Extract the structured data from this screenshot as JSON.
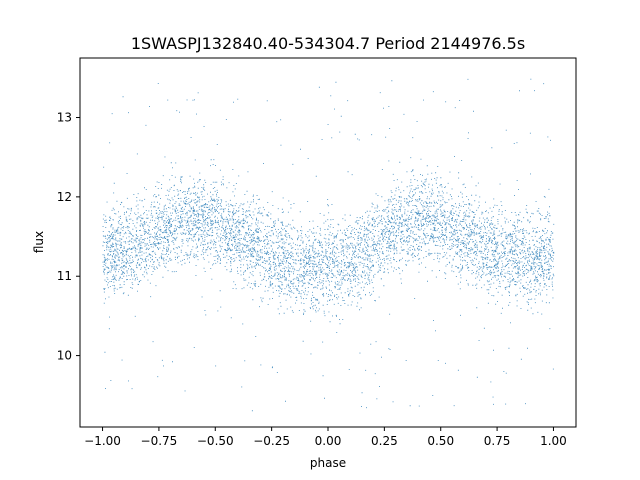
{
  "chart_data": {
    "type": "scatter",
    "title": "1SWASPJ132840.40-534304.7 Period 2144976.5s",
    "xlabel": "phase",
    "ylabel": "flux",
    "xlim": [
      -1.1,
      1.1
    ],
    "ylim": [
      9.1,
      13.75
    ],
    "xticks": [
      -1.0,
      -0.75,
      -0.5,
      -0.25,
      0.0,
      0.25,
      0.5,
      0.75,
      1.0
    ],
    "xtick_labels": [
      "−1.00",
      "−0.75",
      "−0.50",
      "−0.25",
      "0.00",
      "0.25",
      "0.50",
      "0.75",
      "1.00"
    ],
    "yticks": [
      10,
      11,
      12,
      13
    ],
    "ytick_labels": [
      "10",
      "11",
      "12",
      "13"
    ],
    "grid": false,
    "point_color": "#1f77b4",
    "series": [
      {
        "x_range": [
          -1.0,
          1.0
        ],
        "mean_profile": {
          "phase": [
            -1.0,
            -0.9,
            -0.8,
            -0.7,
            -0.6,
            -0.5,
            -0.4,
            -0.3,
            -0.2,
            -0.1,
            0.0,
            0.1,
            0.2,
            0.3,
            0.4,
            0.5,
            0.6,
            0.7,
            0.8,
            0.9,
            1.0
          ],
          "flux": [
            11.3,
            11.35,
            11.45,
            11.65,
            11.75,
            11.7,
            11.5,
            11.35,
            11.2,
            11.1,
            11.15,
            11.2,
            11.4,
            11.65,
            11.75,
            11.7,
            11.5,
            11.4,
            11.3,
            11.2,
            11.3
          ]
        },
        "core_spread": 0.5,
        "outlier_range": [
          9.3,
          13.5
        ]
      }
    ]
  }
}
